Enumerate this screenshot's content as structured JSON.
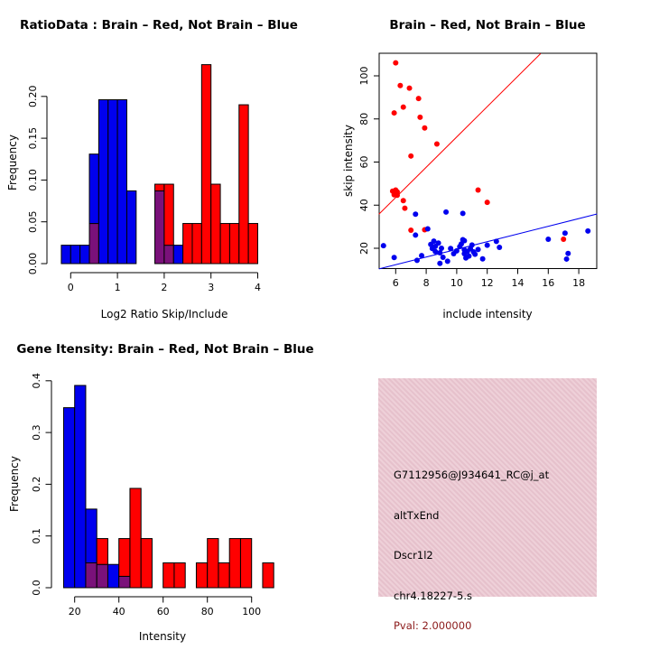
{
  "page": {
    "background": "#ffffff"
  },
  "colors": {
    "red": "#ff0000",
    "blue": "#0000ee",
    "purple": "#7a117a",
    "black": "#000000",
    "pink_box": "#ebc8d2",
    "pval_text": "#8b1a1a"
  },
  "chart_data": [
    {
      "id": "ratio_hist",
      "type": "bar",
      "title": "RatioData : Brain – Red, Not Brain – Blue",
      "xlabel": "Log2 Ratio Skip/Include",
      "ylabel": "Frequency",
      "xlim": [
        -0.3,
        4.1
      ],
      "ylim": [
        0,
        0.24
      ],
      "xticks": [
        0,
        1,
        2,
        3,
        4
      ],
      "yticks": [
        "0.00",
        "0.05",
        "0.10",
        "0.15",
        "0.20"
      ],
      "ytick_vals": [
        0,
        0.05,
        0.1,
        0.15,
        0.2
      ],
      "legend_note": "Brain = red, Not Brain = blue, overlap = purple",
      "bars": [
        {
          "x0": -0.2,
          "x1": 0.0,
          "segments": [
            {
              "c": "blue",
              "y0": 0,
              "y1": 0.022
            }
          ]
        },
        {
          "x0": 0.0,
          "x1": 0.2,
          "segments": [
            {
              "c": "blue",
              "y0": 0,
              "y1": 0.022
            }
          ]
        },
        {
          "x0": 0.2,
          "x1": 0.4,
          "segments": [
            {
              "c": "blue",
              "y0": 0,
              "y1": 0.022
            }
          ]
        },
        {
          "x0": 0.4,
          "x1": 0.6,
          "segments": [
            {
              "c": "purple",
              "y0": 0,
              "y1": 0.048
            },
            {
              "c": "blue",
              "y0": 0.048,
              "y1": 0.131
            }
          ]
        },
        {
          "x0": 0.6,
          "x1": 0.8,
          "segments": [
            {
              "c": "blue",
              "y0": 0,
              "y1": 0.196
            }
          ]
        },
        {
          "x0": 0.8,
          "x1": 1.0,
          "segments": [
            {
              "c": "blue",
              "y0": 0,
              "y1": 0.196
            }
          ]
        },
        {
          "x0": 1.0,
          "x1": 1.2,
          "segments": [
            {
              "c": "blue",
              "y0": 0,
              "y1": 0.196
            }
          ]
        },
        {
          "x0": 1.2,
          "x1": 1.4,
          "segments": [
            {
              "c": "blue",
              "y0": 0,
              "y1": 0.087
            }
          ]
        },
        {
          "x0": 1.8,
          "x1": 2.0,
          "segments": [
            {
              "c": "purple",
              "y0": 0,
              "y1": 0.087
            },
            {
              "c": "red",
              "y0": 0.087,
              "y1": 0.095
            }
          ]
        },
        {
          "x0": 2.0,
          "x1": 2.2,
          "segments": [
            {
              "c": "purple",
              "y0": 0,
              "y1": 0.022
            },
            {
              "c": "red",
              "y0": 0.022,
              "y1": 0.095
            }
          ]
        },
        {
          "x0": 2.2,
          "x1": 2.4,
          "segments": [
            {
              "c": "blue",
              "y0": 0,
              "y1": 0.022
            }
          ]
        },
        {
          "x0": 2.4,
          "x1": 2.6,
          "segments": [
            {
              "c": "red",
              "y0": 0,
              "y1": 0.048
            }
          ]
        },
        {
          "x0": 2.6,
          "x1": 2.8,
          "segments": [
            {
              "c": "red",
              "y0": 0,
              "y1": 0.048
            }
          ]
        },
        {
          "x0": 2.8,
          "x1": 3.0,
          "segments": [
            {
              "c": "red",
              "y0": 0,
              "y1": 0.238
            }
          ]
        },
        {
          "x0": 3.0,
          "x1": 3.2,
          "segments": [
            {
              "c": "red",
              "y0": 0,
              "y1": 0.095
            }
          ]
        },
        {
          "x0": 3.2,
          "x1": 3.4,
          "segments": [
            {
              "c": "red",
              "y0": 0,
              "y1": 0.048
            }
          ]
        },
        {
          "x0": 3.4,
          "x1": 3.6,
          "segments": [
            {
              "c": "red",
              "y0": 0,
              "y1": 0.048
            }
          ]
        },
        {
          "x0": 3.6,
          "x1": 3.8,
          "segments": [
            {
              "c": "red",
              "y0": 0,
              "y1": 0.19
            }
          ]
        },
        {
          "x0": 3.8,
          "x1": 4.0,
          "segments": [
            {
              "c": "red",
              "y0": 0,
              "y1": 0.048
            }
          ]
        }
      ]
    },
    {
      "id": "intensity_scatter",
      "type": "scatter",
      "title": "Brain – Red, Not Brain – Blue",
      "xlabel": "include intensity",
      "ylabel": "skip intensity",
      "xlim": [
        4.9,
        19.2
      ],
      "ylim": [
        10.6,
        110.3
      ],
      "xticks": [
        6,
        8,
        10,
        12,
        14,
        16,
        18
      ],
      "yticks": [
        20,
        40,
        60,
        80,
        100
      ],
      "lines": [
        {
          "c": "red",
          "x0": 4.9,
          "y0": 35.8,
          "x1": 15.5,
          "y1": 110.3
        },
        {
          "c": "blue",
          "x0": 4.9,
          "y0": 10.4,
          "x1": 19.2,
          "y1": 35.9
        }
      ],
      "series": [
        {
          "name": "brain",
          "c": "red",
          "points": [
            [
              6.0,
              106
            ],
            [
              6.3,
              95.5
            ],
            [
              6.9,
              94.3
            ],
            [
              7.5,
              89.5
            ],
            [
              6.5,
              85.5
            ],
            [
              5.9,
              82.8
            ],
            [
              7.6,
              80.8
            ],
            [
              7.9,
              75.8
            ],
            [
              8.7,
              68.4
            ],
            [
              7.0,
              62.8
            ],
            [
              5.8,
              46.5
            ],
            [
              6.0,
              47.0
            ],
            [
              6.1,
              46.2
            ],
            [
              5.9,
              44.8
            ],
            [
              6.1,
              44.6
            ],
            [
              6.5,
              42.1
            ],
            [
              6.6,
              38.6
            ],
            [
              11.4,
              47.0
            ],
            [
              12.0,
              41.3
            ],
            [
              7.0,
              28.4
            ],
            [
              7.9,
              28.6
            ],
            [
              17.0,
              24.2
            ]
          ]
        },
        {
          "name": "not_brain",
          "c": "blue",
          "points": [
            [
              7.3,
              35.8
            ],
            [
              9.3,
              36.8
            ],
            [
              10.4,
              36.2
            ],
            [
              5.2,
              21.2
            ],
            [
              5.9,
              15.7
            ],
            [
              7.4,
              14.4
            ],
            [
              7.7,
              16.6
            ],
            [
              7.3,
              26.1
            ],
            [
              8.1,
              29.0
            ],
            [
              8.3,
              21.8
            ],
            [
              8.5,
              23.3
            ],
            [
              8.4,
              19.9
            ],
            [
              8.6,
              18.5
            ],
            [
              8.6,
              20.9
            ],
            [
              8.8,
              22.4
            ],
            [
              8.9,
              17.9
            ],
            [
              9.0,
              20.0
            ],
            [
              9.1,
              15.8
            ],
            [
              8.9,
              13.0
            ],
            [
              9.4,
              14.0
            ],
            [
              9.6,
              19.9
            ],
            [
              9.8,
              17.5
            ],
            [
              10.0,
              18.8
            ],
            [
              10.2,
              20.8
            ],
            [
              10.3,
              22.0
            ],
            [
              10.4,
              24.0
            ],
            [
              10.5,
              23.5
            ],
            [
              10.5,
              19.3
            ],
            [
              10.5,
              17.5
            ],
            [
              10.6,
              15.5
            ],
            [
              10.7,
              18.6
            ],
            [
              10.8,
              16.4
            ],
            [
              10.9,
              19.8
            ],
            [
              11.0,
              21.5
            ],
            [
              11.1,
              18.3
            ],
            [
              11.2,
              17.2
            ],
            [
              11.4,
              19.4
            ],
            [
              11.7,
              15.1
            ],
            [
              12.0,
              21.4
            ],
            [
              12.6,
              23.2
            ],
            [
              12.8,
              20.4
            ],
            [
              16.0,
              24.2
            ],
            [
              17.1,
              27.0
            ],
            [
              18.6,
              28.0
            ],
            [
              17.3,
              17.6
            ],
            [
              17.2,
              15.0
            ]
          ]
        }
      ]
    },
    {
      "id": "gene_hist",
      "type": "bar",
      "title": "Gene Itensity: Brain – Red, Not Brain – Blue",
      "xlabel": "Intensity",
      "ylabel": "Frequency",
      "xlim": [
        13,
        112
      ],
      "ylim": [
        0,
        0.4
      ],
      "xticks": [
        20,
        40,
        60,
        80,
        100
      ],
      "yticks": [
        "0.0",
        "0.1",
        "0.2",
        "0.3",
        "0.4"
      ],
      "ytick_vals": [
        0,
        0.1,
        0.2,
        0.3,
        0.4
      ],
      "legend_note": "Brain = red, Not Brain = blue, overlap = purple",
      "bars": [
        {
          "x0": 15,
          "x1": 20,
          "segments": [
            {
              "c": "blue",
              "y0": 0,
              "y1": 0.348
            }
          ]
        },
        {
          "x0": 20,
          "x1": 25,
          "segments": [
            {
              "c": "blue",
              "y0": 0,
              "y1": 0.391
            }
          ]
        },
        {
          "x0": 25,
          "x1": 30,
          "segments": [
            {
              "c": "purple",
              "y0": 0,
              "y1": 0.048
            },
            {
              "c": "blue",
              "y0": 0.048,
              "y1": 0.152
            }
          ]
        },
        {
          "x0": 30,
          "x1": 35,
          "segments": [
            {
              "c": "purple",
              "y0": 0,
              "y1": 0.045
            },
            {
              "c": "red",
              "y0": 0.045,
              "y1": 0.095
            }
          ]
        },
        {
          "x0": 35,
          "x1": 40,
          "segments": [
            {
              "c": "blue",
              "y0": 0,
              "y1": 0.045
            }
          ]
        },
        {
          "x0": 40,
          "x1": 45,
          "segments": [
            {
              "c": "purple",
              "y0": 0,
              "y1": 0.022
            },
            {
              "c": "red",
              "y0": 0.022,
              "y1": 0.095
            }
          ]
        },
        {
          "x0": 45,
          "x1": 50,
          "segments": [
            {
              "c": "red",
              "y0": 0,
              "y1": 0.192
            }
          ]
        },
        {
          "x0": 50,
          "x1": 55,
          "segments": [
            {
              "c": "red",
              "y0": 0,
              "y1": 0.095
            }
          ]
        },
        {
          "x0": 60,
          "x1": 65,
          "segments": [
            {
              "c": "red",
              "y0": 0,
              "y1": 0.048
            }
          ]
        },
        {
          "x0": 65,
          "x1": 70,
          "segments": [
            {
              "c": "red",
              "y0": 0,
              "y1": 0.048
            }
          ]
        },
        {
          "x0": 75,
          "x1": 80,
          "segments": [
            {
              "c": "red",
              "y0": 0,
              "y1": 0.048
            }
          ]
        },
        {
          "x0": 80,
          "x1": 85,
          "segments": [
            {
              "c": "red",
              "y0": 0,
              "y1": 0.095
            }
          ]
        },
        {
          "x0": 85,
          "x1": 90,
          "segments": [
            {
              "c": "red",
              "y0": 0,
              "y1": 0.048
            }
          ]
        },
        {
          "x0": 90,
          "x1": 95,
          "segments": [
            {
              "c": "red",
              "y0": 0,
              "y1": 0.095
            }
          ]
        },
        {
          "x0": 95,
          "x1": 100,
          "segments": [
            {
              "c": "red",
              "y0": 0,
              "y1": 0.095
            }
          ]
        },
        {
          "x0": 105,
          "x1": 110,
          "segments": [
            {
              "c": "red",
              "y0": 0,
              "y1": 0.048
            }
          ]
        }
      ]
    }
  ],
  "info_panel": {
    "probe_id": "G7112956@J934641_RC@j_at",
    "event_type": "altTxEnd",
    "gene": "Dscr1l2",
    "location": "chr4.18227-5.s",
    "pval": "Pval: 2.000000"
  }
}
